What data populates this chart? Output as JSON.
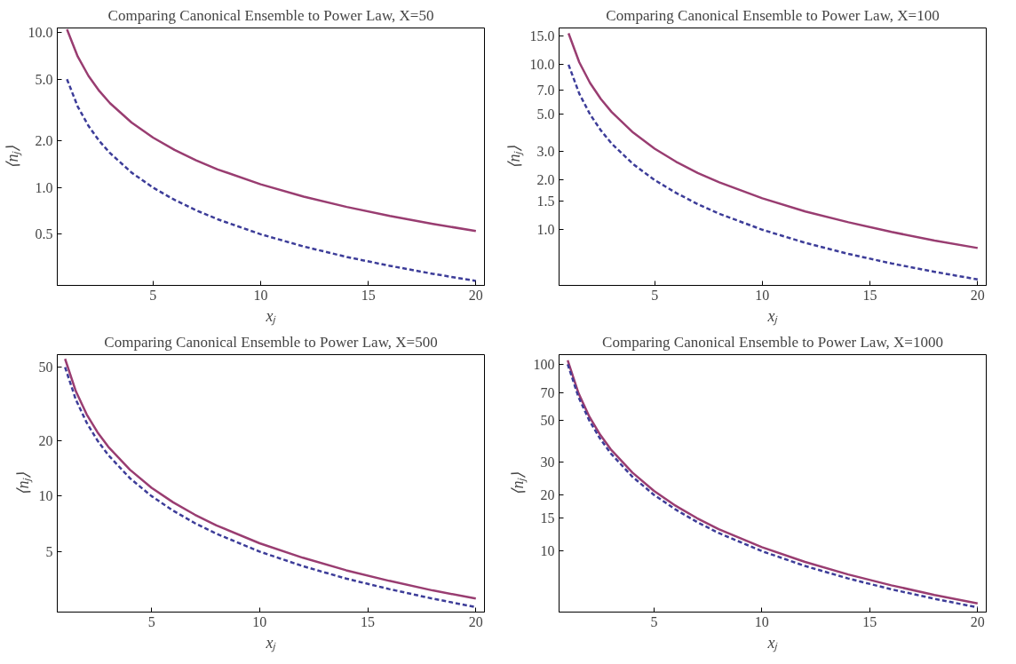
{
  "chart_data": [
    {
      "type": "line",
      "title": "Comparing Canonical Ensemble to Power Law, X=50",
      "xlabel": "xⱼ",
      "ylabel": "⟨nⱼ⟩",
      "log": true,
      "grid": false,
      "x": [
        1,
        1.5,
        2,
        2.5,
        3,
        4,
        5,
        6,
        7,
        8,
        10,
        12,
        14,
        16,
        18,
        20
      ],
      "xlim": [
        0.55,
        20.4
      ],
      "xticks": [
        5,
        10,
        15,
        20
      ],
      "ylim": [
        0.234,
        10.7
      ],
      "yticks": [
        {
          "value": 0.5,
          "label": "0.5"
        },
        {
          "value": 1,
          "label": "1.0"
        },
        {
          "value": 2,
          "label": "2.0"
        },
        {
          "value": 5,
          "label": "5.0"
        },
        {
          "value": 10,
          "label": "10.0"
        }
      ],
      "series": [
        {
          "color": "#993d71",
          "line_style": "solid",
          "values": [
            10.5,
            7.0,
            5.25,
            4.2,
            3.5,
            2.63,
            2.1,
            1.75,
            1.5,
            1.31,
            1.05,
            0.875,
            0.75,
            0.656,
            0.583,
            0.525
          ]
        },
        {
          "color": "#3d3d99",
          "line_style": "dashed",
          "values": [
            5,
            3.33,
            2.5,
            2,
            1.67,
            1.25,
            1,
            0.833,
            0.714,
            0.625,
            0.5,
            0.417,
            0.357,
            0.313,
            0.278,
            0.25
          ]
        }
      ]
    },
    {
      "type": "line",
      "title": "Comparing Canonical Ensemble to Power Law, X=100",
      "xlabel": "xⱼ",
      "ylabel": "⟨nⱼ⟩",
      "log": true,
      "grid": false,
      "x": [
        1,
        1.5,
        2,
        2.5,
        3,
        4,
        5,
        6,
        7,
        8,
        10,
        12,
        14,
        16,
        18,
        20
      ],
      "xlim": [
        0.56,
        20.4
      ],
      "xticks": [
        5,
        10,
        15,
        20
      ],
      "ylim": [
        0.46,
        16.7
      ],
      "yticks": [
        {
          "value": 1,
          "label": "1.0"
        },
        {
          "value": 1.5,
          "label": "1.5"
        },
        {
          "value": 2,
          "label": "2.0"
        },
        {
          "value": 3,
          "label": "3.0"
        },
        {
          "value": 5,
          "label": "5.0"
        },
        {
          "value": 7,
          "label": "7.0"
        },
        {
          "value": 10,
          "label": "10.0"
        },
        {
          "value": 15,
          "label": "15.0"
        }
      ],
      "series": [
        {
          "color": "#993d71",
          "line_style": "solid",
          "values": [
            15.5,
            10.33,
            7.75,
            6.2,
            5.17,
            3.88,
            3.1,
            2.58,
            2.21,
            1.94,
            1.55,
            1.29,
            1.11,
            0.97,
            0.86,
            0.775
          ]
        },
        {
          "color": "#3d3d99",
          "line_style": "dashed",
          "values": [
            10,
            6.67,
            5,
            4,
            3.33,
            2.5,
            2,
            1.67,
            1.43,
            1.25,
            1,
            0.833,
            0.714,
            0.625,
            0.556,
            0.5
          ]
        }
      ]
    },
    {
      "type": "line",
      "title": "Comparing Canonical Ensemble to Power Law, X=500",
      "xlabel": "xⱼ",
      "ylabel": "⟨nⱼ⟩",
      "log": true,
      "grid": false,
      "x": [
        1,
        1.5,
        2,
        2.5,
        3,
        4,
        5,
        6,
        7,
        8,
        10,
        12,
        14,
        16,
        18,
        20
      ],
      "xlim": [
        0.64,
        20.4
      ],
      "xticks": [
        5,
        10,
        15,
        20
      ],
      "ylim": [
        2.35,
        58.5
      ],
      "yticks": [
        5,
        10,
        20,
        50
      ],
      "series": [
        {
          "color": "#993d71",
          "line_style": "solid",
          "values": [
            55.5,
            37,
            27.75,
            22.2,
            18.5,
            13.9,
            11.1,
            9.25,
            7.93,
            6.94,
            5.55,
            4.63,
            3.96,
            3.47,
            3.08,
            2.78
          ]
        },
        {
          "color": "#3d3d99",
          "line_style": "dashed",
          "values": [
            50,
            33.3,
            25,
            20,
            16.7,
            12.5,
            10,
            8.33,
            7.14,
            6.25,
            5,
            4.17,
            3.57,
            3.13,
            2.78,
            2.5
          ]
        }
      ]
    },
    {
      "type": "line",
      "title": "Comparing Canonical Ensemble to Power Law, X=1000",
      "xlabel": "xⱼ",
      "ylabel": "⟨nⱼ⟩",
      "log": true,
      "grid": false,
      "x": [
        1,
        1.5,
        2,
        2.5,
        3,
        4,
        5,
        6,
        7,
        8,
        10,
        12,
        14,
        16,
        18,
        20
      ],
      "xlim": [
        0.6,
        20.4
      ],
      "xticks": [
        5,
        10,
        15,
        20
      ],
      "ylim": [
        4.72,
        112.5
      ],
      "yticks": [
        10,
        15,
        20,
        30,
        50,
        70,
        100
      ],
      "series": [
        {
          "color": "#993d71",
          "line_style": "solid",
          "values": [
            105,
            70,
            52.5,
            42,
            35,
            26.3,
            21,
            17.5,
            15,
            13.1,
            10.5,
            8.75,
            7.5,
            6.56,
            5.83,
            5.25
          ]
        },
        {
          "color": "#3d3d99",
          "line_style": "dashed",
          "values": [
            100,
            66.7,
            50,
            40,
            33.3,
            25,
            20,
            16.7,
            14.3,
            12.5,
            10,
            8.33,
            7.14,
            6.25,
            5.56,
            5
          ]
        }
      ]
    }
  ]
}
